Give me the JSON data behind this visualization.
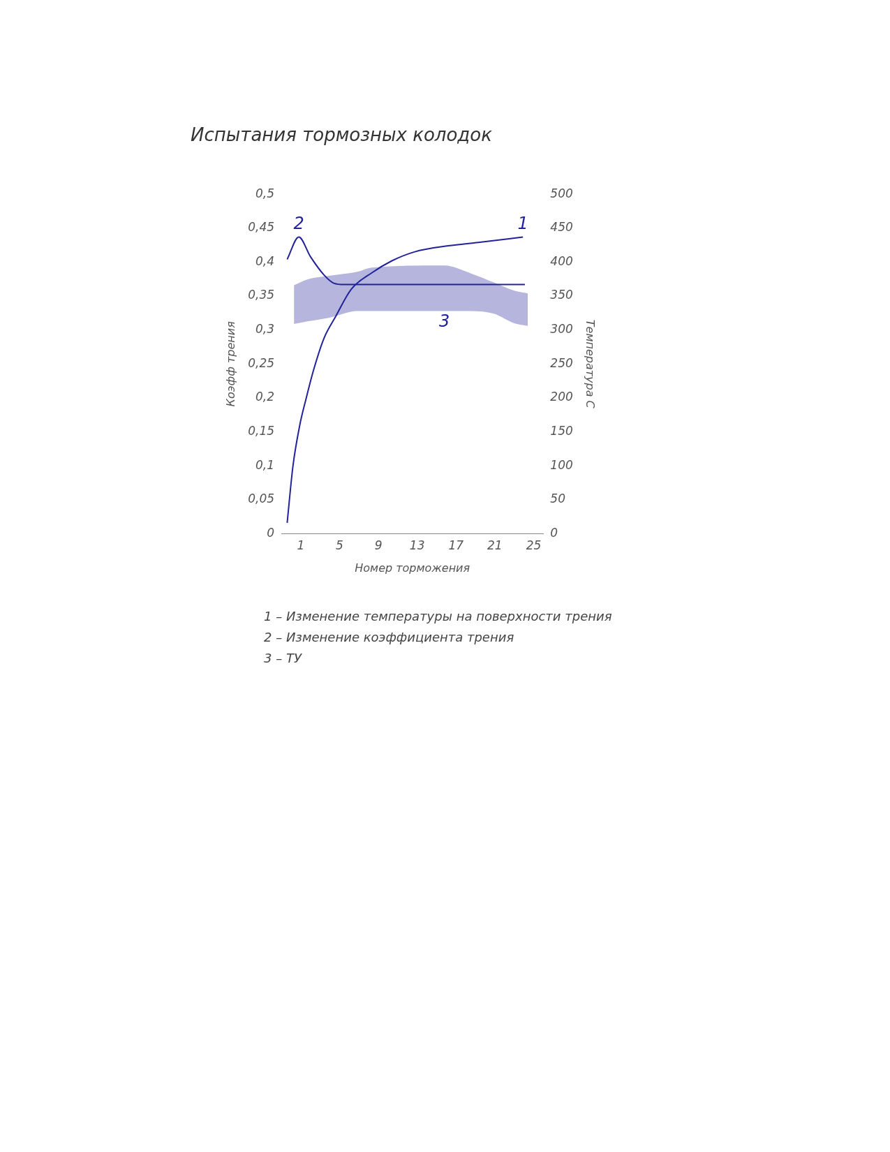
{
  "chart_data": {
    "type": "line",
    "title": "Испытания тормозных колодок",
    "xlabel": "Номер торможения",
    "ylabel": "Коэфф трения",
    "y2label": "Температура С",
    "xlim": [
      -1,
      26
    ],
    "xticks": [
      1,
      5,
      9,
      13,
      17,
      21,
      25
    ],
    "ylim": [
      0,
      0.5
    ],
    "yticks": [
      {
        "value": 0,
        "label": "0"
      },
      {
        "value": 0.05,
        "label": "0,05"
      },
      {
        "value": 0.1,
        "label": "0,1"
      },
      {
        "value": 0.15,
        "label": "0,15"
      },
      {
        "value": 0.2,
        "label": "0,2"
      },
      {
        "value": 0.25,
        "label": "0,25"
      },
      {
        "value": 0.3,
        "label": "0,3"
      },
      {
        "value": 0.35,
        "label": "0,35"
      },
      {
        "value": 0.4,
        "label": "0,4"
      },
      {
        "value": 0.45,
        "label": "0,45"
      },
      {
        "value": 0.5,
        "label": "0,5"
      }
    ],
    "y2lim": [
      0,
      500
    ],
    "y2ticks": [
      0,
      50,
      100,
      150,
      200,
      250,
      300,
      350,
      400,
      450,
      500
    ],
    "grid": false,
    "legend": false,
    "marker": "none",
    "line_style": "solid",
    "series": [
      {
        "name": "1",
        "type": "line",
        "axis": "y2",
        "color": "#22229a",
        "x": [
          -0.4,
          0.2,
          0.9,
          1.5,
          2.3,
          3.4,
          4.6,
          6.2,
          8.3,
          10.4,
          12.7,
          16.2,
          19.3,
          23.9
        ],
        "values": [
          16,
          100,
          160,
          196,
          240,
          288,
          320,
          360,
          384,
          402,
          415,
          424,
          429,
          437
        ]
      },
      {
        "name": "2",
        "type": "line",
        "color": "#22229a",
        "x": [
          -0.4,
          0.8,
          2.0,
          3.4,
          4.4,
          5.5,
          24.1
        ],
        "values": [
          0.404,
          0.437,
          0.408,
          0.381,
          0.369,
          0.367,
          0.367
        ]
      },
      {
        "name": "3",
        "type": "area",
        "color": "#22229a",
        "x": [
          0.3,
          1.8,
          3.9,
          6.9,
          8.3,
          15.8,
          18.6,
          20.9,
          23.0,
          24.4
        ],
        "values": [
          null,
          null,
          null,
          null,
          null,
          null,
          null,
          null,
          null,
          null
        ],
        "lower": [
          0.309,
          0.313,
          0.318,
          0.328,
          0.328,
          0.328,
          0.328,
          0.324,
          0.31,
          0.306
        ],
        "upper": [
          0.366,
          0.375,
          0.38,
          0.386,
          0.392,
          0.395,
          0.383,
          0.37,
          0.358,
          0.354
        ]
      }
    ],
    "annotations": [
      "1 – Изменение температуры на поверхности трения",
      "2 – Изменение коэффициента трения",
      "3 – ТУ"
    ]
  }
}
